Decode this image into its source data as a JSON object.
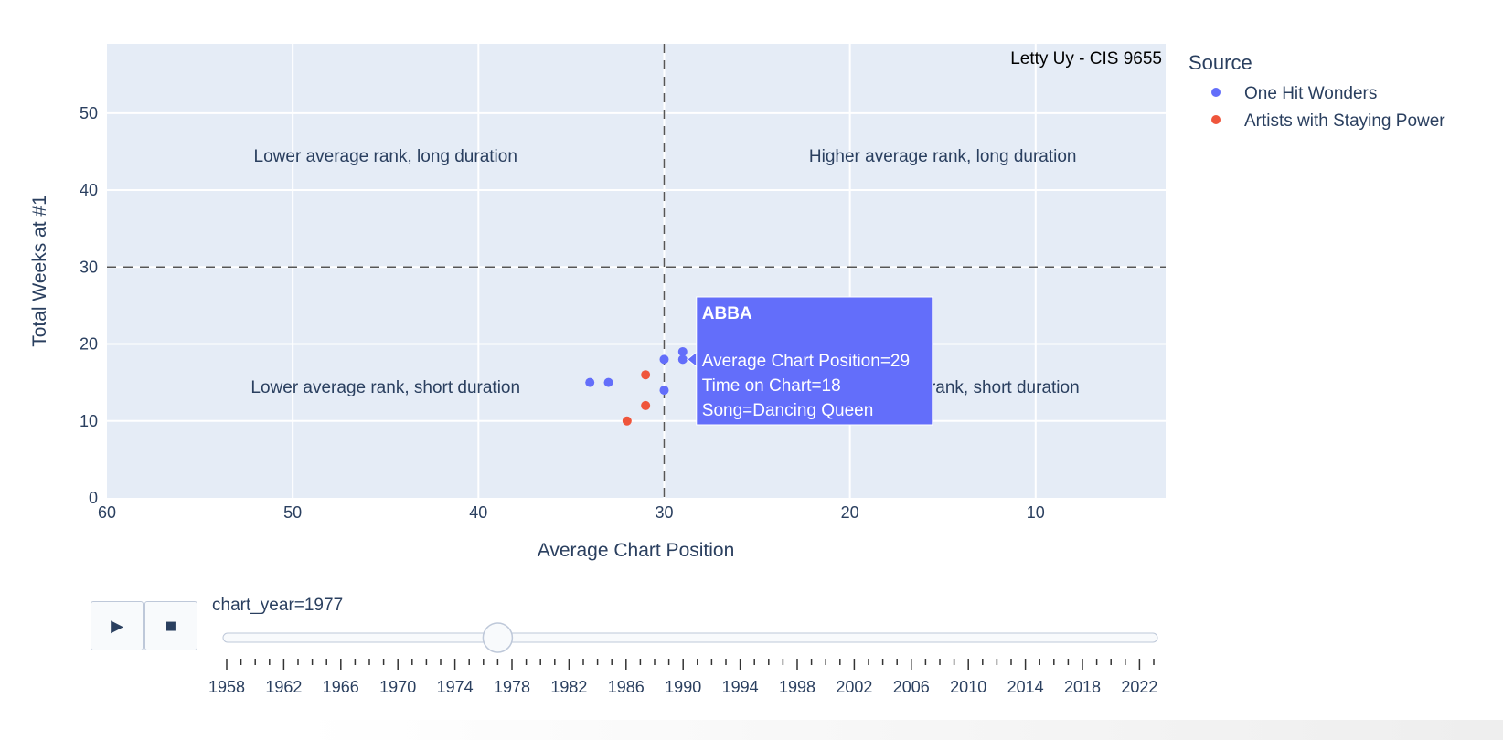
{
  "chart_data": {
    "type": "scatter",
    "title": "",
    "watermark": "Letty Uy - CIS 9655",
    "xlabel": "Average Chart Position",
    "ylabel": "Total Weeks at #1",
    "xlim": [
      60,
      3
    ],
    "x_reversed": true,
    "ylim": [
      0,
      59
    ],
    "xticks": [
      60,
      50,
      40,
      30,
      20,
      10
    ],
    "yticks": [
      0,
      10,
      20,
      30,
      40,
      50
    ],
    "grid": true,
    "reference_lines": {
      "x": 30,
      "y": 30,
      "style": "dashed"
    },
    "quadrant_labels": [
      {
        "text": "Lower average rank, long duration",
        "x": 45,
        "y": 44.5
      },
      {
        "text": "Higher average rank, long duration",
        "x": 15,
        "y": 44.5
      },
      {
        "text": "Lower average rank, short duration",
        "x": 45,
        "y": 14.5
      },
      {
        "text": "Higher average rank, short duration",
        "x": 15,
        "y": 14.5
      }
    ],
    "legend": {
      "title": "Source",
      "placement": "top-right"
    },
    "series": [
      {
        "name": "One Hit Wonders",
        "color": "#636efa",
        "points": [
          {
            "x": 34,
            "y": 15
          },
          {
            "x": 33,
            "y": 15
          },
          {
            "x": 30,
            "y": 18
          },
          {
            "x": 30,
            "y": 14
          },
          {
            "x": 29,
            "y": 19
          },
          {
            "x": 29,
            "y": 18
          }
        ]
      },
      {
        "name": "Artists with Staying Power",
        "color": "#ef553b",
        "points": [
          {
            "x": 31,
            "y": 16
          },
          {
            "x": 31,
            "y": 12
          },
          {
            "x": 32,
            "y": 10
          }
        ]
      }
    ],
    "tooltip": {
      "title": "ABBA",
      "lines": [
        "Average Chart Position=29",
        "Time on Chart=18",
        "Song=Dancing Queen"
      ],
      "anchor": {
        "x": 29,
        "y": 18
      },
      "color": "#636efa"
    }
  },
  "slider": {
    "label": "chart_year=1977",
    "current": 1977,
    "min": 1958,
    "max": 2023,
    "year_labels": [
      "1958",
      "1962",
      "1966",
      "1970",
      "1974",
      "1978",
      "1982",
      "1986",
      "1990",
      "1994",
      "1998",
      "2002",
      "2006",
      "2010",
      "2014",
      "2018",
      "2022"
    ]
  },
  "controls": {
    "play_icon": "play-icon",
    "stop_icon": "stop-icon"
  }
}
